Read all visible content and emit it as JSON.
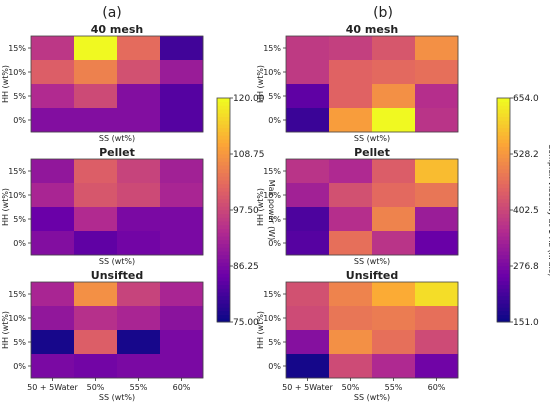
{
  "panel_labels": [
    "(a)",
    "(b)"
  ],
  "colormap": [
    "#0d0887",
    "#6a00a8",
    "#b12a90",
    "#e16462",
    "#fca636",
    "#f0f921"
  ],
  "chart_data": [
    {
      "panel": "(a)",
      "type": "heatmap",
      "title": "40 mesh",
      "xlabel": "SS (wt%)",
      "ylabel": "HH (wt%)",
      "categories": [
        "50 + 5Water",
        "50%",
        "55%",
        "60%"
      ],
      "y_categories": [
        "15%",
        "10%",
        "5%",
        "0%"
      ],
      "values": [
        [
          95,
          120,
          103,
          80
        ],
        [
          101,
          106,
          99,
          90
        ],
        [
          93,
          98,
          87,
          82
        ],
        [
          87,
          87,
          87,
          82
        ]
      ],
      "colorbar_label": "Max power (W)",
      "clim": [
        75.0,
        120.0
      ],
      "colorbar_ticks": [
        "75.00",
        "86.25",
        "97.50",
        "108.75",
        "120.00"
      ]
    },
    {
      "panel": "(a)",
      "type": "heatmap",
      "title": "Pellet",
      "xlabel": "SS (wt%)",
      "ylabel": "HH (wt%)",
      "categories": [
        "50 + 5Water",
        "50%",
        "55%",
        "60%"
      ],
      "y_categories": [
        "15%",
        "10%",
        "5%",
        "0%"
      ],
      "values": [
        [
          89,
          101,
          97,
          91
        ],
        [
          92,
          100,
          98,
          92
        ],
        [
          84,
          93,
          86,
          86
        ],
        [
          87,
          83,
          85,
          86
        ]
      ],
      "colorbar_label": "Max power (W)",
      "clim": [
        75.0,
        120.0
      ],
      "colorbar_ticks": [
        "75.00",
        "86.25",
        "97.50",
        "108.75",
        "120.00"
      ]
    },
    {
      "panel": "(a)",
      "type": "heatmap",
      "title": "Unsifted",
      "xlabel": "SS (wt%)",
      "ylabel": "HH (wt%)",
      "categories": [
        "50 + 5Water",
        "50%",
        "55%",
        "60%"
      ],
      "y_categories": [
        "15%",
        "10%",
        "5%",
        "0%"
      ],
      "values": [
        [
          92,
          108,
          97,
          92
        ],
        [
          89,
          94,
          92,
          88
        ],
        [
          76,
          101,
          76,
          86
        ],
        [
          86,
          85,
          86,
          86
        ]
      ],
      "colorbar_label": "Max power (W)",
      "clim": [
        75.0,
        120.0
      ],
      "colorbar_ticks": [
        "75.00",
        "86.25",
        "97.50",
        "108.75",
        "120.00"
      ]
    },
    {
      "panel": "(b)",
      "type": "heatmap",
      "title": "40 mesh",
      "xlabel": "SS (wt%)",
      "ylabel": "HH (wt%)",
      "categories": [
        "50 + 5Water",
        "50%",
        "55%",
        "60%"
      ],
      "y_categories": [
        "15%",
        "10%",
        "5%",
        "0%"
      ],
      "values": [
        [
          380,
          390,
          430,
          520
        ],
        [
          380,
          450,
          460,
          470
        ],
        [
          240,
          450,
          520,
          360
        ],
        [
          200,
          540,
          654,
          370
        ]
      ],
      "colorbar_label": "Complex viscosity at 1 Hz (kPa.s)",
      "clim": [
        151.0,
        654.0
      ],
      "colorbar_ticks": [
        "151.0",
        "276.8",
        "402.5",
        "528.2",
        "654.0"
      ]
    },
    {
      "panel": "(b)",
      "type": "heatmap",
      "title": "Pellet",
      "xlabel": "SS (wt%)",
      "ylabel": "HH (wt%)",
      "categories": [
        "50 + 5Water",
        "50%",
        "55%",
        "60%"
      ],
      "y_categories": [
        "15%",
        "10%",
        "5%",
        "0%"
      ],
      "values": [
        [
          370,
          350,
          440,
          580
        ],
        [
          330,
          420,
          460,
          480
        ],
        [
          220,
          360,
          500,
          320
        ],
        [
          230,
          470,
          370,
          250
        ]
      ],
      "colorbar_label": "Complex viscosity at 1 Hz (kPa.s)",
      "clim": [
        151.0,
        654.0
      ],
      "colorbar_ticks": [
        "151.0",
        "276.8",
        "402.5",
        "528.2",
        "654.0"
      ]
    },
    {
      "panel": "(b)",
      "type": "heatmap",
      "title": "Unsifted",
      "xlabel": "SS (wt%)",
      "ylabel": "HH (wt%)",
      "categories": [
        "50 + 5Water",
        "50%",
        "55%",
        "60%"
      ],
      "y_categories": [
        "15%",
        "10%",
        "5%",
        "0%"
      ],
      "values": [
        [
          420,
          500,
          560,
          620
        ],
        [
          410,
          480,
          490,
          470
        ],
        [
          290,
          520,
          470,
          410
        ],
        [
          160,
          410,
          350,
          260
        ]
      ],
      "colorbar_label": "Complex viscosity at 1 Hz (kPa.s)",
      "clim": [
        151.0,
        654.0
      ],
      "colorbar_ticks": [
        "151.0",
        "276.8",
        "402.5",
        "528.2",
        "654.0"
      ]
    }
  ]
}
